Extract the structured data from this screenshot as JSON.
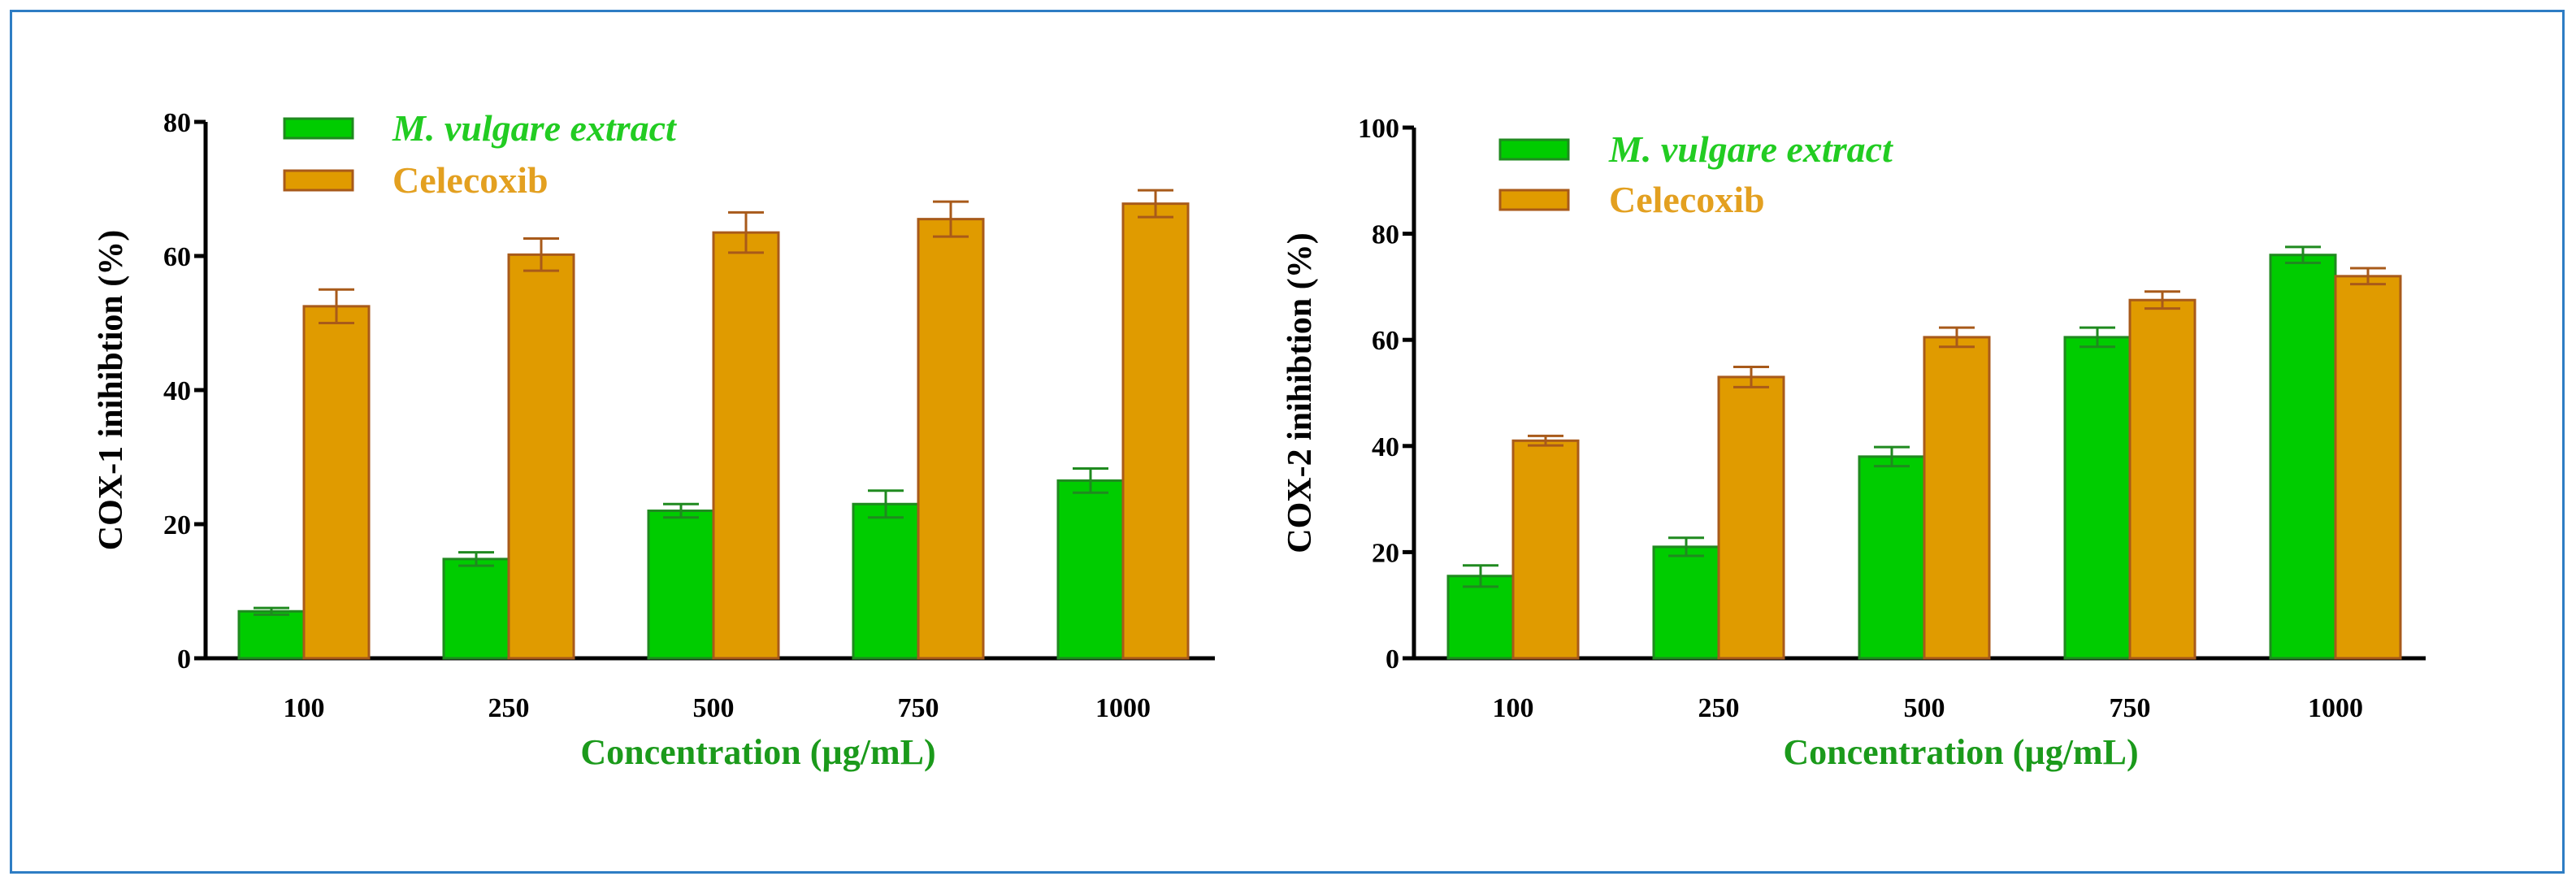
{
  "colors": {
    "frame": "#2e7dc4",
    "extract_fill": "#00cc00",
    "extract_stroke": "#1f8a1f",
    "celecoxib_fill": "#e09b00",
    "celecoxib_stroke": "#a85a1a",
    "axis_title_green": "#1b9a1b",
    "legend_extract_text": "#22cc22",
    "legend_celecoxib_text": "#e3a020"
  },
  "chart_data": [
    {
      "type": "bar",
      "title": "",
      "xlabel": "Concentration (µg/mL)",
      "ylabel": "COX-1 inihibtion (%)",
      "categories": [
        "100",
        "250",
        "500",
        "750",
        "1000"
      ],
      "ylim": [
        0,
        80
      ],
      "yticks": [
        "0",
        "20",
        "40",
        "60",
        "80"
      ],
      "legend_position": "top-left",
      "series": [
        {
          "name": "M. vulgare extract",
          "values": [
            7,
            14.8,
            22,
            23,
            26.5
          ],
          "errors": [
            0.5,
            1,
            1,
            2,
            1.8
          ]
        },
        {
          "name": "Celecoxib",
          "values": [
            52.5,
            60.2,
            63.5,
            65.5,
            67.8
          ],
          "errors": [
            2.5,
            2.4,
            3,
            2.6,
            2
          ]
        }
      ]
    },
    {
      "type": "bar",
      "title": "",
      "xlabel": "Concentration (µg/mL)",
      "ylabel": "COX-2 inihibtion (%)",
      "categories": [
        "100",
        "250",
        "500",
        "750",
        "1000"
      ],
      "ylim": [
        0,
        100
      ],
      "yticks": [
        "0",
        "20",
        "40",
        "60",
        "80",
        "100"
      ],
      "legend_position": "top-left",
      "series": [
        {
          "name": "M. vulgare extract",
          "values": [
            15.5,
            21,
            38,
            60.5,
            76
          ],
          "errors": [
            2,
            1.7,
            1.8,
            1.8,
            1.5
          ]
        },
        {
          "name": "Celecoxib",
          "values": [
            41,
            53,
            60.5,
            67.5,
            72
          ],
          "errors": [
            0.9,
            1.9,
            1.8,
            1.6,
            1.5
          ]
        }
      ]
    }
  ]
}
